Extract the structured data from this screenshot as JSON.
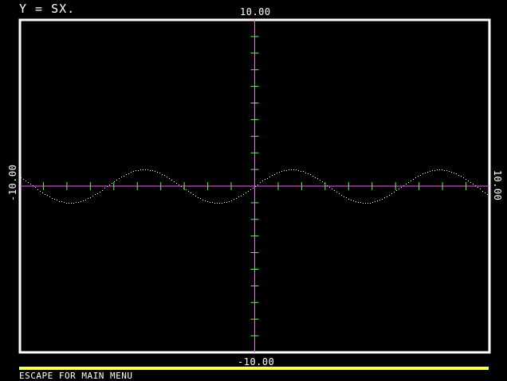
{
  "screen": {
    "equation": "Y = SX.",
    "footer": "ESCAPE FOR MAIN MENU"
  },
  "colors": {
    "background": "#000000",
    "frame": "#ffffff",
    "axis": "#ff55ff",
    "tick": "#55ff55",
    "curve": "#ffffff",
    "status_bar": "#ffff55"
  },
  "chart_data": {
    "type": "line",
    "title": "Y = SX.",
    "xlim": [
      -10,
      10
    ],
    "ylim": [
      -10,
      10
    ],
    "x_tick_step": 1,
    "y_tick_step": 1,
    "labels": {
      "ymax": "10.00",
      "ymin": "-10.00",
      "xmin": "-10.00",
      "xmax": "10.00"
    },
    "function": "y = sin(x)",
    "series": [
      {
        "style": "dotted",
        "x": [
          -10,
          -9,
          -8,
          -7,
          -6,
          -5,
          -4,
          -3,
          -2,
          -1,
          0,
          1,
          2,
          3,
          4,
          5,
          6,
          7,
          8,
          9,
          10
        ],
        "y": [
          0.544,
          -0.412,
          -0.989,
          -0.657,
          0.279,
          0.959,
          0.757,
          -0.141,
          -0.909,
          -0.841,
          0,
          0.841,
          0.909,
          0.141,
          -0.757,
          -0.959,
          -0.279,
          0.657,
          0.989,
          0.412,
          -0.544
        ]
      }
    ]
  }
}
